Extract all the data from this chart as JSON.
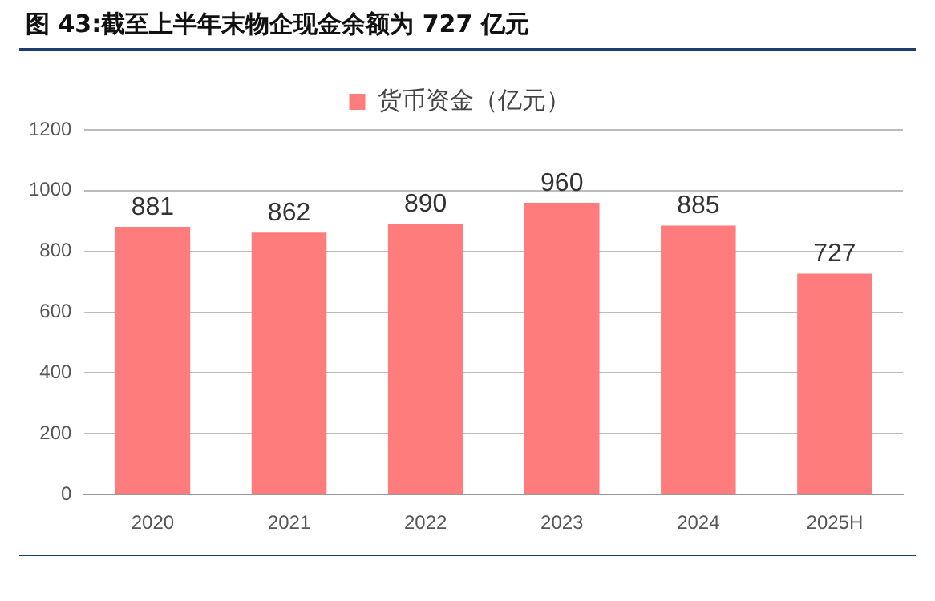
{
  "chart_data": {
    "type": "bar",
    "title": "图 43:截至上半年末物企现金余额为 727 亿元",
    "categories": [
      "2020",
      "2021",
      "2022",
      "2023",
      "2024",
      "2025H"
    ],
    "series": [
      {
        "name": "货币资金（亿元）",
        "color": "#ff7c7c",
        "values": [
          881,
          862,
          890,
          960,
          885,
          727
        ]
      }
    ],
    "ylim": [
      0,
      1200
    ],
    "yticks": [
      0,
      200,
      400,
      600,
      800,
      1000,
      1200
    ],
    "grid": "y",
    "legend": "top",
    "data_labels": true
  }
}
